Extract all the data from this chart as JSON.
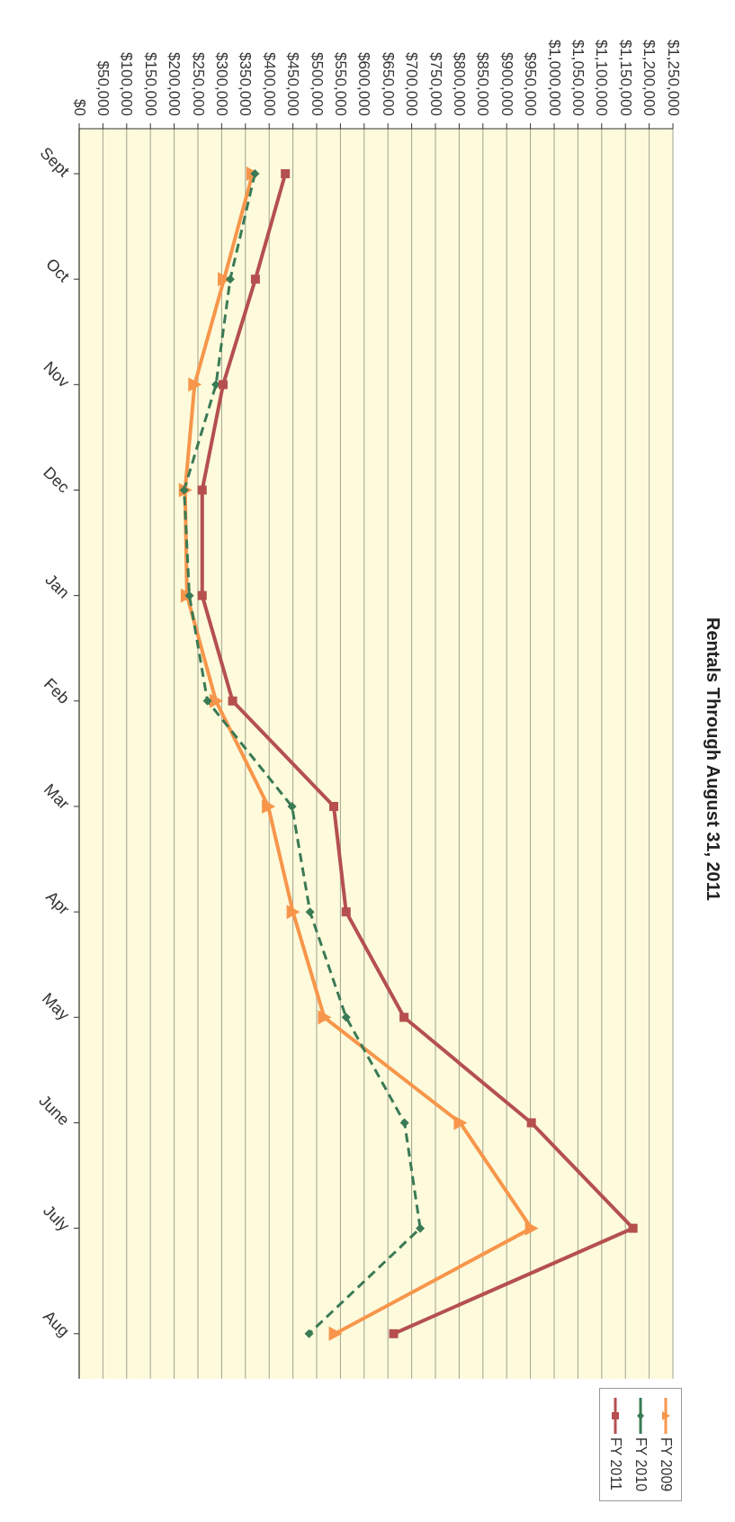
{
  "chart_data": {
    "type": "line",
    "title": "Rentals Through August 31, 2011",
    "orientation": "horizontal",
    "categories": [
      "Sept",
      "Oct",
      "Nov",
      "Dec",
      "Jan",
      "Feb",
      "Mar",
      "Apr",
      "May",
      "June",
      "July",
      "Aug"
    ],
    "series": [
      {
        "name": "FY 2009",
        "color": "#f7964b",
        "marker": "triangle",
        "line_style": "solid",
        "values": [
          365000,
          305000,
          243000,
          223000,
          227000,
          288000,
          398000,
          450000,
          516000,
          802000,
          952000,
          539000
        ]
      },
      {
        "name": "FY 2010",
        "color": "#3a7a55",
        "marker": "diamond",
        "line_style": "dashed",
        "values": [
          370000,
          318000,
          288000,
          221000,
          232000,
          270000,
          448000,
          486000,
          562000,
          685000,
          718000,
          484000
        ]
      },
      {
        "name": "FY 2011",
        "color": "#b5504f",
        "marker": "square",
        "line_style": "solid",
        "values": [
          434000,
          371000,
          303000,
          259000,
          259000,
          323000,
          536000,
          562000,
          684000,
          952000,
          1166000,
          662000
        ]
      }
    ],
    "xlim": [
      0,
      1250000
    ],
    "xticks": [
      {
        "value": 0,
        "label": "$0"
      },
      {
        "value": 50000,
        "label": "$50,000"
      },
      {
        "value": 100000,
        "label": "$100,000"
      },
      {
        "value": 150000,
        "label": "$150,000"
      },
      {
        "value": 200000,
        "label": "$200,000"
      },
      {
        "value": 250000,
        "label": "$250,000"
      },
      {
        "value": 300000,
        "label": "$300,000"
      },
      {
        "value": 350000,
        "label": "$350,000"
      },
      {
        "value": 400000,
        "label": "$400,000"
      },
      {
        "value": 450000,
        "label": "$450,000"
      },
      {
        "value": 500000,
        "label": "$500,000"
      },
      {
        "value": 550000,
        "label": "$550,000"
      },
      {
        "value": 600000,
        "label": "$600,000"
      },
      {
        "value": 650000,
        "label": "$650,000"
      },
      {
        "value": 700000,
        "label": "$700,000"
      },
      {
        "value": 750000,
        "label": "$750,000"
      },
      {
        "value": 800000,
        "label": "$800,000"
      },
      {
        "value": 850000,
        "label": "$850,000"
      },
      {
        "value": 900000,
        "label": "$900,000"
      },
      {
        "value": 950000,
        "label": "$950,000"
      },
      {
        "value": 1000000,
        "label": "$1,000,000"
      },
      {
        "value": 1050000,
        "label": "$1,050,000"
      },
      {
        "value": 1100000,
        "label": "$1,100,000"
      },
      {
        "value": 1150000,
        "label": "$1,150,000"
      },
      {
        "value": 1200000,
        "label": "$1,200,000"
      },
      {
        "value": 1250000,
        "label": "$1,250,000"
      }
    ],
    "grid": "x",
    "legend": "bottom right"
  }
}
